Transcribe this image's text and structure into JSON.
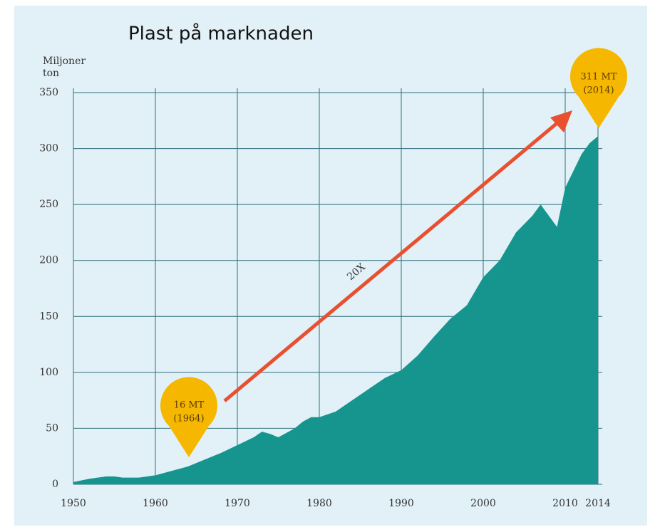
{
  "chart_data": {
    "type": "area",
    "title": "Plast på marknaden",
    "y_label": [
      "Miljoner",
      "ton"
    ],
    "x": [
      1950,
      1952,
      1954,
      1955,
      1956,
      1958,
      1960,
      1962,
      1964,
      1966,
      1968,
      1970,
      1972,
      1973,
      1974,
      1975,
      1976,
      1977,
      1978,
      1979,
      1980,
      1982,
      1984,
      1986,
      1988,
      1990,
      1992,
      1994,
      1996,
      1998,
      2000,
      2002,
      2004,
      2006,
      2007,
      2008,
      2009,
      2010,
      2011,
      2012,
      2013,
      2014
    ],
    "values": [
      2,
      5,
      7,
      7,
      6,
      6,
      8,
      12,
      16,
      22,
      28,
      35,
      42,
      47,
      45,
      42,
      46,
      50,
      56,
      60,
      60,
      65,
      75,
      85,
      95,
      102,
      115,
      132,
      148,
      160,
      185,
      200,
      225,
      240,
      250,
      240,
      230,
      265,
      280,
      295,
      305,
      311
    ],
    "color": "#16958f",
    "xlim": [
      1950,
      2014
    ],
    "xticks": [
      1950,
      1960,
      1970,
      1980,
      1990,
      2000,
      2010,
      2014
    ],
    "ylim": [
      0,
      350
    ],
    "yticks": [
      0,
      50,
      100,
      150,
      200,
      250,
      300,
      350
    ],
    "grid": true,
    "annotations": [
      {
        "text": [
          "16 MT",
          "(1964)"
        ]
      },
      {
        "text": [
          "311 MT",
          "(2014)"
        ]
      },
      {
        "text": "20X"
      }
    ]
  }
}
